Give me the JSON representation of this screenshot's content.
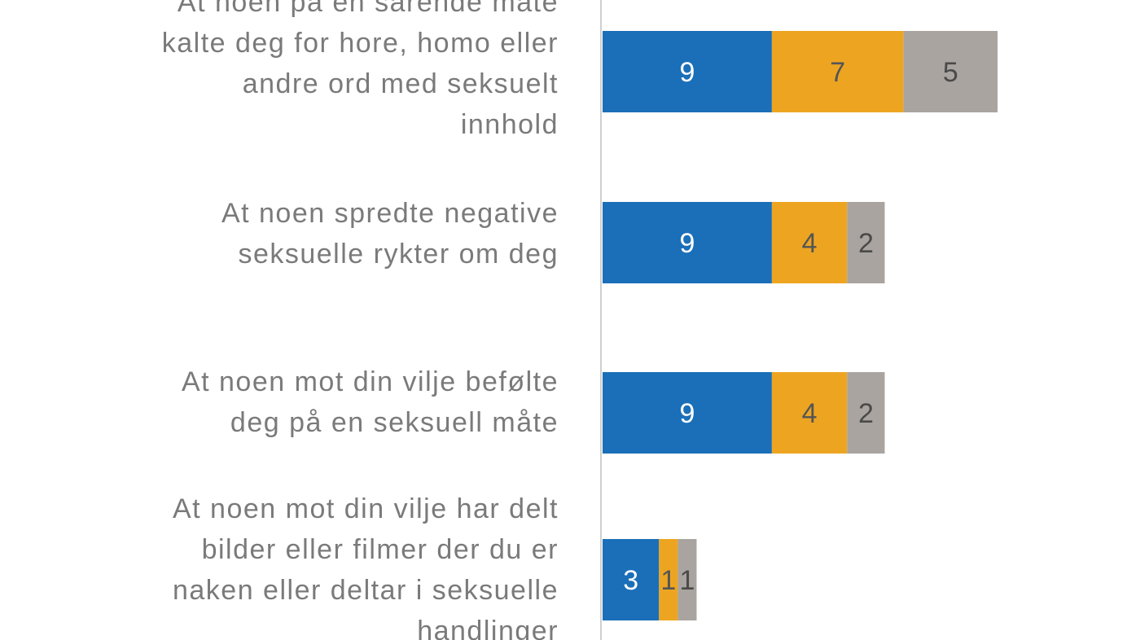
{
  "chart_data": {
    "type": "bar",
    "orientation": "horizontal",
    "stacked": true,
    "categories": [
      "At noen på en sårende måte kalte deg for hore, homo eller andre ord med seksuelt innhold",
      "At noen spredte negative seksuelle rykter om deg",
      "At noen mot din vilje befølte deg på en seksuell måte",
      "At noen mot din vilje har delt bilder eller filmer der du er naken eller deltar i seksuelle handlinger"
    ],
    "category_lines": [
      [
        "At noen på en sårende måte",
        "kalte deg for hore, homo eller",
        "andre ord med seksuelt",
        "innhold"
      ],
      [
        "At noen spredte negative",
        "seksuelle rykter om deg"
      ],
      [
        "At noen mot din vilje befølte",
        "deg på en seksuell måte"
      ],
      [
        "At noen mot din vilje har delt",
        "bilder eller filmer der du er",
        "naken eller deltar i seksuelle",
        "handlinger"
      ]
    ],
    "series": [
      {
        "values": [
          9,
          9,
          9,
          3
        ],
        "color": "#1a6fb8",
        "label_color": "#ffffff"
      },
      {
        "values": [
          7,
          4,
          4,
          1
        ],
        "color": "#eda521",
        "label_color": "#555555"
      },
      {
        "values": [
          5,
          2,
          2,
          1
        ],
        "color": "#a9a49f",
        "label_color": "#4a4a4a"
      }
    ],
    "data_labels": true,
    "xlabel": "",
    "ylabel": "",
    "title": "",
    "legend": "none",
    "grid": false
  }
}
